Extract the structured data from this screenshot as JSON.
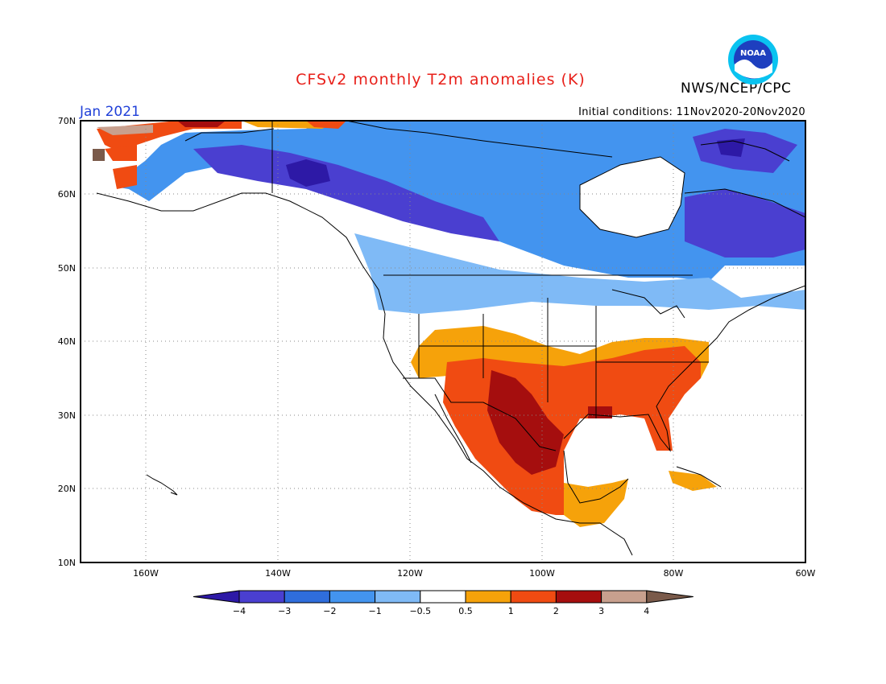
{
  "title": "CFSv2 monthly T2m anomalies (K)",
  "agency": "NWS/NCEP/CPC",
  "logo_text": "NOAA",
  "month_label": "Jan 2021",
  "initial_conditions": "Initial conditions: 11Nov2020-20Nov2020",
  "axes": {
    "lat_ticks": [
      "70N",
      "60N",
      "50N",
      "40N",
      "30N",
      "20N",
      "10N"
    ],
    "lon_ticks": [
      "160W",
      "140W",
      "120W",
      "100W",
      "80W",
      "60W"
    ]
  },
  "colorbar": {
    "labels": [
      "−4",
      "−3",
      "−2",
      "−1",
      "−0.5",
      "0.5",
      "1",
      "2",
      "3",
      "4"
    ],
    "colors": [
      "#2d19a6",
      "#4a3fd0",
      "#2f6ddc",
      "#4394ef",
      "#7fbaf6",
      "#ffffff",
      "#f6a20a",
      "#f04b12",
      "#a50e0e",
      "#c8a08e",
      "#7a5a4a"
    ]
  }
}
